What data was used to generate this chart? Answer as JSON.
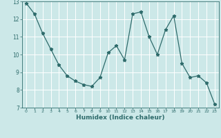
{
  "x": [
    0,
    1,
    2,
    3,
    4,
    5,
    6,
    7,
    8,
    9,
    10,
    11,
    12,
    13,
    14,
    15,
    16,
    17,
    18,
    19,
    20,
    21,
    22,
    23
  ],
  "y": [
    12.9,
    12.3,
    11.2,
    10.3,
    9.4,
    8.8,
    8.5,
    8.3,
    8.2,
    8.7,
    10.1,
    10.5,
    9.7,
    12.3,
    12.4,
    11.0,
    10.0,
    11.4,
    12.2,
    9.5,
    8.7,
    8.8,
    8.4,
    7.2
  ],
  "xlabel": "Humidex (Indice chaleur)",
  "xlim": [
    -0.5,
    23.5
  ],
  "ylim": [
    7,
    13
  ],
  "yticks": [
    7,
    8,
    9,
    10,
    11,
    12,
    13
  ],
  "xticks": [
    0,
    1,
    2,
    3,
    4,
    5,
    6,
    7,
    8,
    9,
    10,
    11,
    12,
    13,
    14,
    15,
    16,
    17,
    18,
    19,
    20,
    21,
    22,
    23
  ],
  "line_color": "#2e6b6b",
  "marker": "*",
  "bg_color": "#cce8e8",
  "grid_color": "#ffffff",
  "axes_color": "#2e6b6b",
  "tick_color": "#2e6b6b"
}
